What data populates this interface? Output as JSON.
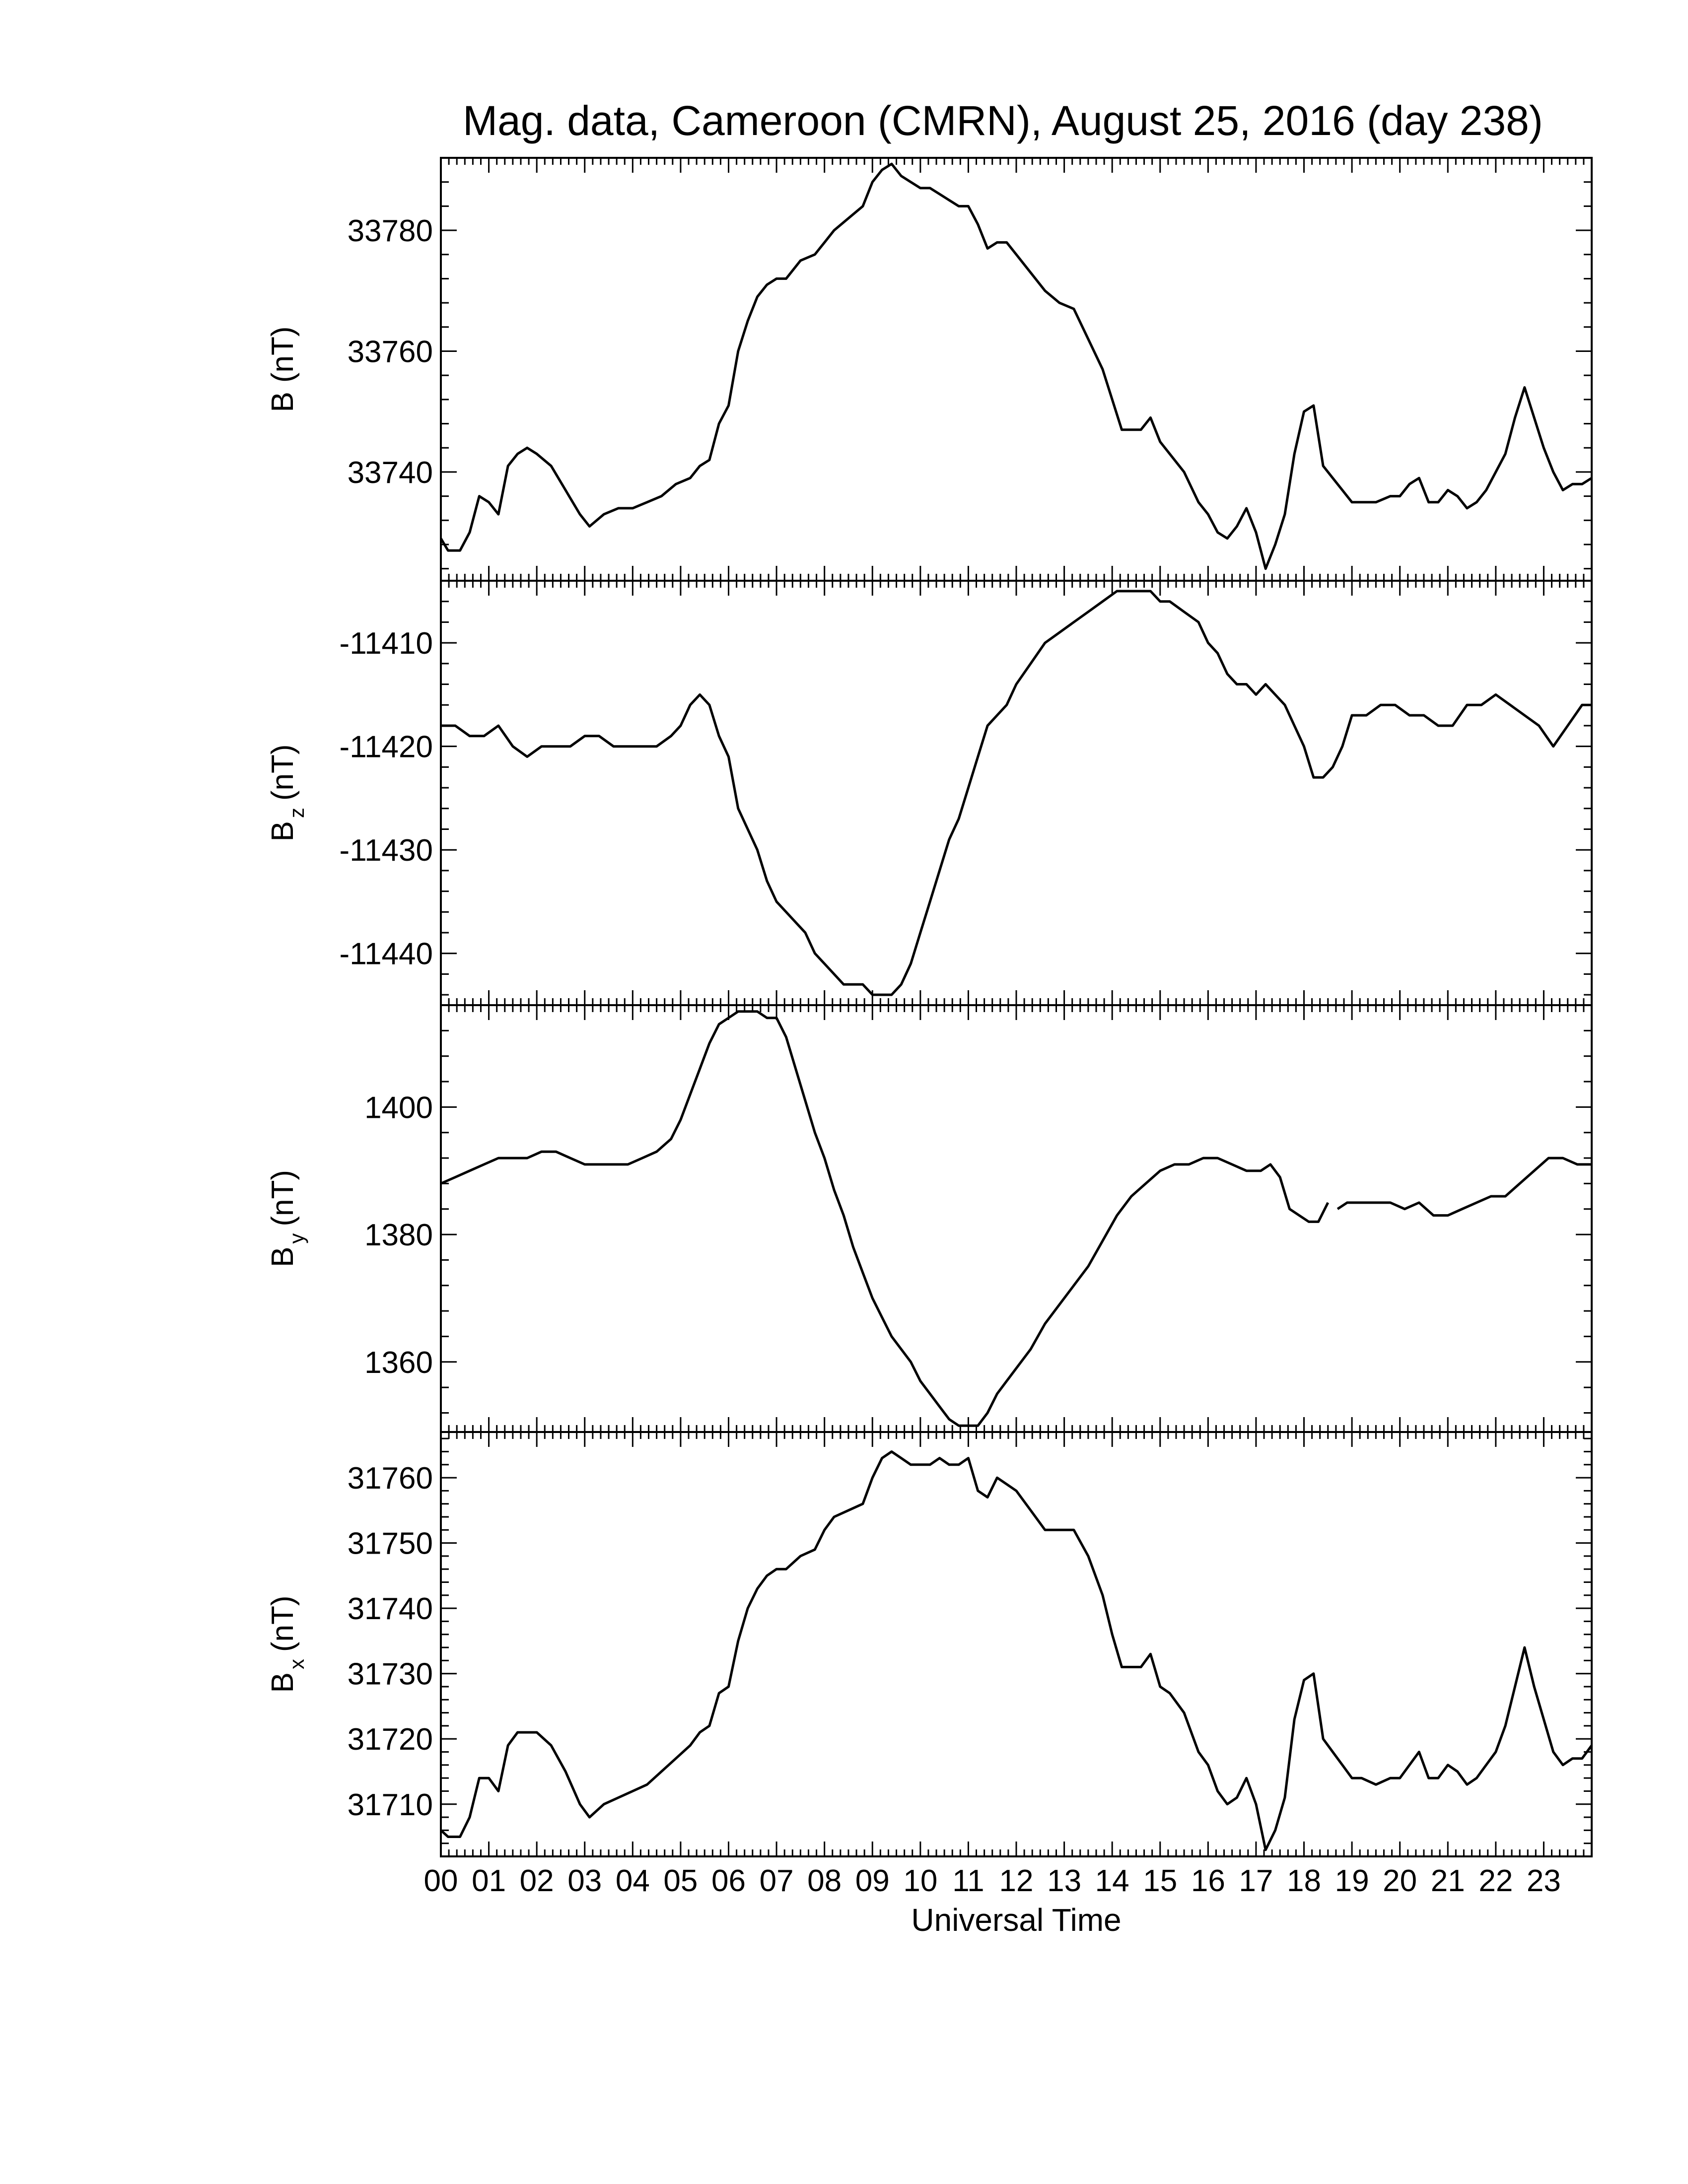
{
  "title": "Mag. data, Cameroon (CMRN), August 25, 2016 (day 238)",
  "colors": {
    "line": "#000000",
    "axis": "#000000",
    "background": "#ffffff"
  },
  "chart_data": {
    "type": "line",
    "title": "Mag. data, Cameroon (CMRN), August 25, 2016 (day 238)",
    "xlabel": "Universal Time",
    "x_tick_labels": [
      "00",
      "01",
      "02",
      "03",
      "04",
      "05",
      "06",
      "07",
      "08",
      "09",
      "10",
      "11",
      "12",
      "13",
      "14",
      "15",
      "16",
      "17",
      "18",
      "19",
      "20",
      "21",
      "22",
      "23"
    ],
    "xlim": [
      0,
      24
    ],
    "grid": false,
    "panels": [
      {
        "name": "B",
        "ylabel_main": "B",
        "ylabel_sub": "",
        "ylabel_unit": "(nT)",
        "ylim": [
          33722,
          33792
        ],
        "yticks": [
          33740,
          33760,
          33780
        ],
        "series": [
          {
            "x": [
              0,
              0.15,
              0.4,
              0.6,
              0.8,
              1.0,
              1.2,
              1.4,
              1.6,
              1.8,
              2.0,
              2.3,
              2.6,
              2.9,
              3.1,
              3.4,
              3.7,
              4.0,
              4.3,
              4.6,
              4.9,
              5.2,
              5.4,
              5.6,
              5.8,
              6.0,
              6.2,
              6.4,
              6.6,
              6.8,
              7.0,
              7.2,
              7.5,
              7.8,
              8.0,
              8.2,
              8.5,
              8.8,
              9.0,
              9.2,
              9.4,
              9.6,
              9.8,
              10.0,
              10.2,
              10.4,
              10.6,
              10.8,
              11.0,
              11.2,
              11.4,
              11.6,
              11.8,
              12.0,
              12.3,
              12.6,
              12.9,
              13.2,
              13.5,
              13.8,
              14.0,
              14.2,
              14.4,
              14.6,
              14.8,
              15.0,
              15.2,
              15.5,
              15.8,
              16.0,
              16.2,
              16.4,
              16.6,
              16.8,
              17.0,
              17.2,
              17.4,
              17.6,
              17.8,
              18.0,
              18.2,
              18.4,
              18.6,
              18.8,
              19.0,
              19.2,
              19.5,
              19.8,
              20.0,
              20.2,
              20.4,
              20.6,
              20.8,
              21.0,
              21.2,
              21.4,
              21.6,
              21.8,
              22.0,
              22.2,
              22.4,
              22.6,
              22.8,
              23.0,
              23.2,
              23.4,
              23.6,
              23.8,
              24.0
            ],
            "y": [
              33729,
              33727,
              33727,
              33730,
              33736,
              33735,
              33733,
              33741,
              33743,
              33744,
              33743,
              33741,
              33737,
              33733,
              33731,
              33733,
              33734,
              33734,
              33735,
              33736,
              33738,
              33739,
              33741,
              33742,
              33748,
              33751,
              33760,
              33765,
              33769,
              33771,
              33772,
              33772,
              33775,
              33776,
              33778,
              33780,
              33782,
              33784,
              33788,
              33790,
              33791,
              33789,
              33788,
              33787,
              33787,
              33786,
              33785,
              33784,
              33784,
              33781,
              33777,
              33778,
              33778,
              33776,
              33773,
              33770,
              33768,
              33767,
              33762,
              33757,
              33752,
              33747,
              33747,
              33747,
              33749,
              33745,
              33743,
              33740,
              33735,
              33733,
              33730,
              33729,
              33731,
              33734,
              33730,
              33724,
              33728,
              33733,
              33743,
              33750,
              33751,
              33741,
              33739,
              33737,
              33735,
              33735,
              33735,
              33736,
              33736,
              33738,
              33739,
              33735,
              33735,
              33737,
              33736,
              33734,
              33735,
              33737,
              33740,
              33743,
              33749,
              33754,
              33749,
              33744,
              33740,
              33737,
              33738,
              33738,
              33739
            ]
          }
        ]
      },
      {
        "name": "B_z",
        "ylabel_main": "B",
        "ylabel_sub": "z",
        "ylabel_unit": "(nT)",
        "ylim": [
          -11445,
          -11404
        ],
        "yticks": [
          -11440,
          -11430,
          -11420,
          -11410
        ],
        "series": [
          {
            "x": [
              0,
              0.3,
              0.6,
              0.9,
              1.2,
              1.5,
              1.8,
              2.1,
              2.4,
              2.7,
              3.0,
              3.3,
              3.6,
              3.9,
              4.2,
              4.5,
              4.8,
              5.0,
              5.2,
              5.4,
              5.6,
              5.8,
              6.0,
              6.2,
              6.4,
              6.6,
              6.8,
              7.0,
              7.2,
              7.4,
              7.6,
              7.8,
              8.0,
              8.2,
              8.4,
              8.6,
              8.8,
              9.0,
              9.2,
              9.4,
              9.6,
              9.8,
              10.0,
              10.2,
              10.4,
              10.6,
              10.8,
              11.0,
              11.2,
              11.4,
              11.6,
              11.8,
              12.0,
              12.3,
              12.6,
              12.9,
              13.2,
              13.5,
              13.8,
              14.1,
              14.4,
              14.6,
              14.8,
              15.0,
              15.2,
              15.5,
              15.8,
              16.0,
              16.2,
              16.4,
              16.6,
              16.8,
              17.0,
              17.2,
              17.4,
              17.6,
              17.8,
              18.0,
              18.2,
              18.4,
              18.6,
              18.8,
              19.0,
              19.3,
              19.6,
              19.9,
              20.2,
              20.5,
              20.8,
              21.1,
              21.4,
              21.7,
              22.0,
              22.3,
              22.6,
              22.9,
              23.2,
              23.5,
              23.8,
              24.0
            ],
            "y": [
              -11418,
              -11418,
              -11419,
              -11419,
              -11418,
              -11420,
              -11421,
              -11420,
              -11420,
              -11420,
              -11419,
              -11419,
              -11420,
              -11420,
              -11420,
              -11420,
              -11419,
              -11418,
              -11416,
              -11415,
              -11416,
              -11419,
              -11421,
              -11426,
              -11428,
              -11430,
              -11433,
              -11435,
              -11436,
              -11437,
              -11438,
              -11440,
              -11441,
              -11442,
              -11443,
              -11443,
              -11443,
              -11444,
              -11444,
              -11444,
              -11443,
              -11441,
              -11438,
              -11435,
              -11432,
              -11429,
              -11427,
              -11424,
              -11421,
              -11418,
              -11417,
              -11416,
              -11414,
              -11412,
              -11410,
              -11409,
              -11408,
              -11407,
              -11406,
              -11405,
              -11405,
              -11405,
              -11405,
              -11406,
              -11406,
              -11407,
              -11408,
              -11410,
              -11411,
              -11413,
              -11414,
              -11414,
              -11415,
              -11414,
              -11415,
              -11416,
              -11418,
              -11420,
              -11423,
              -11423,
              -11422,
              -11420,
              -11417,
              -11417,
              -11416,
              -11416,
              -11417,
              -11417,
              -11418,
              -11418,
              -11416,
              -11416,
              -11415,
              -11416,
              -11417,
              -11418,
              -11420,
              -11418,
              -11416,
              -11416
            ]
          }
        ]
      },
      {
        "name": "B_y",
        "ylabel_main": "B",
        "ylabel_sub": "y",
        "ylabel_unit": "(nT)",
        "ylim": [
          1349,
          1416
        ],
        "yticks": [
          1360,
          1380,
          1400
        ],
        "series": [
          {
            "x": [
              0,
              0.3,
              0.6,
              0.9,
              1.2,
              1.5,
              1.8,
              2.1,
              2.4,
              2.7,
              3.0,
              3.3,
              3.6,
              3.9,
              4.2,
              4.5,
              4.8,
              5.0,
              5.2,
              5.4,
              5.6,
              5.8,
              6.0,
              6.2,
              6.4,
              6.6,
              6.8,
              7.0,
              7.2,
              7.4,
              7.6,
              7.8,
              8.0,
              8.2,
              8.4,
              8.6,
              8.8,
              9.0,
              9.2,
              9.4,
              9.6,
              9.8,
              10.0,
              10.2,
              10.4,
              10.6,
              10.8,
              11.0,
              11.2,
              11.4,
              11.6,
              11.8,
              12.0,
              12.3,
              12.6,
              12.9,
              13.2,
              13.5,
              13.8,
              14.1,
              14.4,
              14.7,
              15.0,
              15.3,
              15.6,
              15.9,
              16.2,
              16.5,
              16.8,
              17.1,
              17.3,
              17.5,
              17.7,
              17.9,
              18.1,
              18.3,
              18.5
            ],
            "y": [
              1388,
              1389,
              1390,
              1391,
              1392,
              1392,
              1392,
              1393,
              1393,
              1392,
              1391,
              1391,
              1391,
              1391,
              1392,
              1393,
              1395,
              1398,
              1402,
              1406,
              1410,
              1413,
              1414,
              1415,
              1415,
              1415,
              1414,
              1414,
              1411,
              1406,
              1401,
              1396,
              1392,
              1387,
              1383,
              1378,
              1374,
              1370,
              1367,
              1364,
              1362,
              1360,
              1357,
              1355,
              1353,
              1351,
              1350,
              1350,
              1350,
              1352,
              1355,
              1357,
              1359,
              1362,
              1366,
              1369,
              1372,
              1375,
              1379,
              1383,
              1386,
              1388,
              1390,
              1391,
              1391,
              1392,
              1392,
              1391,
              1390,
              1390,
              1391,
              1389,
              1384,
              1383,
              1382,
              1382,
              1385
            ]
          },
          {
            "x": [
              18.7,
              18.9,
              19.2,
              19.5,
              19.8,
              20.1,
              20.4,
              20.7,
              21.0,
              21.3,
              21.6,
              21.9,
              22.2,
              22.5,
              22.8,
              23.1,
              23.4,
              23.7,
              24.0
            ],
            "y": [
              1384,
              1385,
              1385,
              1385,
              1385,
              1384,
              1385,
              1383,
              1383,
              1384,
              1385,
              1386,
              1386,
              1388,
              1390,
              1392,
              1392,
              1391,
              1391
            ]
          }
        ]
      },
      {
        "name": "B_x",
        "ylabel_main": "B",
        "ylabel_sub": "x",
        "ylabel_unit": "(nT)",
        "ylim": [
          31702,
          31767
        ],
        "yticks": [
          31710,
          31720,
          31730,
          31740,
          31750,
          31760
        ],
        "series": [
          {
            "x": [
              0,
              0.15,
              0.4,
              0.6,
              0.8,
              1.0,
              1.2,
              1.4,
              1.6,
              1.8,
              2.0,
              2.3,
              2.6,
              2.9,
              3.1,
              3.4,
              3.7,
              4.0,
              4.3,
              4.6,
              4.9,
              5.2,
              5.4,
              5.6,
              5.8,
              6.0,
              6.2,
              6.4,
              6.6,
              6.8,
              7.0,
              7.2,
              7.5,
              7.8,
              8.0,
              8.2,
              8.5,
              8.8,
              9.0,
              9.2,
              9.4,
              9.6,
              9.8,
              10.0,
              10.2,
              10.4,
              10.6,
              10.8,
              11.0,
              11.2,
              11.4,
              11.6,
              11.8,
              12.0,
              12.3,
              12.6,
              12.9,
              13.2,
              13.5,
              13.8,
              14.0,
              14.2,
              14.4,
              14.6,
              14.8,
              15.0,
              15.2,
              15.5,
              15.8,
              16.0,
              16.2,
              16.4,
              16.6,
              16.8,
              17.0,
              17.2,
              17.4,
              17.6,
              17.8,
              18.0,
              18.2,
              18.4,
              18.6,
              18.8,
              19.0,
              19.2,
              19.5,
              19.8,
              20.0,
              20.2,
              20.4,
              20.6,
              20.8,
              21.0,
              21.2,
              21.4,
              21.6,
              21.8,
              22.0,
              22.2,
              22.4,
              22.6,
              22.8,
              23.0,
              23.2,
              23.4,
              23.6,
              23.8,
              24.0
            ],
            "y": [
              31706,
              31705,
              31705,
              31708,
              31714,
              31714,
              31712,
              31719,
              31721,
              31721,
              31721,
              31719,
              31715,
              31710,
              31708,
              31710,
              31711,
              31712,
              31713,
              31715,
              31717,
              31719,
              31721,
              31722,
              31727,
              31728,
              31735,
              31740,
              31743,
              31745,
              31746,
              31746,
              31748,
              31749,
              31752,
              31754,
              31755,
              31756,
              31760,
              31763,
              31764,
              31763,
              31762,
              31762,
              31762,
              31763,
              31762,
              31762,
              31763,
              31758,
              31757,
              31760,
              31759,
              31758,
              31755,
              31752,
              31752,
              31752,
              31748,
              31742,
              31736,
              31731,
              31731,
              31731,
              31733,
              31728,
              31727,
              31724,
              31718,
              31716,
              31712,
              31710,
              31711,
              31714,
              31710,
              31703,
              31706,
              31711,
              31723,
              31729,
              31730,
              31720,
              31718,
              31716,
              31714,
              31714,
              31713,
              31714,
              31714,
              31716,
              31718,
              31714,
              31714,
              31716,
              31715,
              31713,
              31714,
              31716,
              31718,
              31722,
              31728,
              31734,
              31728,
              31723,
              31718,
              31716,
              31717,
              31717,
              31719
            ]
          }
        ]
      }
    ]
  }
}
